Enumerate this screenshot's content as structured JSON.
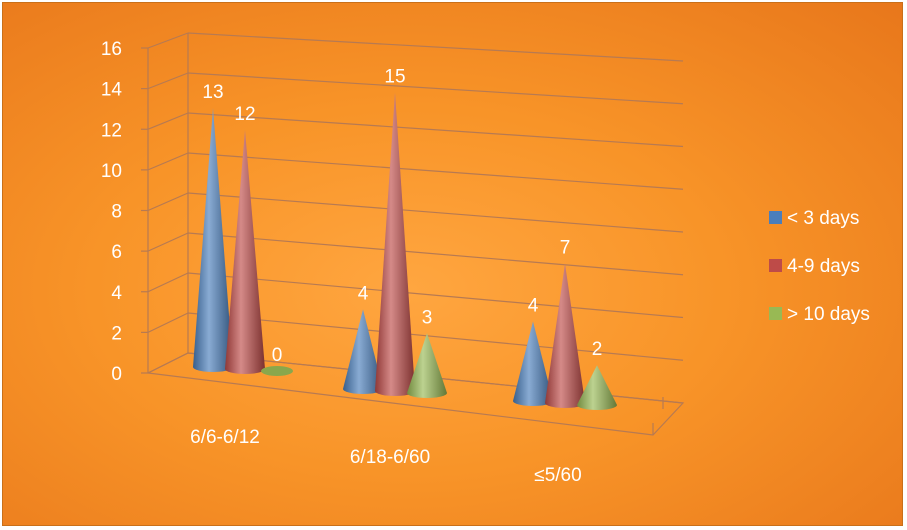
{
  "chart_data": {
    "type": "bar",
    "shape": "3d-cone",
    "categories": [
      "6/6-6/12",
      "6/18-6/60",
      "≤5/60"
    ],
    "series": [
      {
        "name": "< 3 days",
        "values": [
          13,
          4,
          4
        ],
        "color": "#4a7ebb"
      },
      {
        "name": "4-9 days",
        "values": [
          12,
          15,
          7
        ],
        "color": "#be4b48"
      },
      {
        "name": "> 10 days",
        "values": [
          0,
          3,
          2
        ],
        "color": "#98b954"
      }
    ],
    "ylim": [
      0,
      16
    ],
    "yticks": [
      0,
      2,
      4,
      6,
      8,
      10,
      12,
      14,
      16
    ],
    "grid": true,
    "legend": "right",
    "background": "#f7922a",
    "text_color": "#ffffff"
  }
}
